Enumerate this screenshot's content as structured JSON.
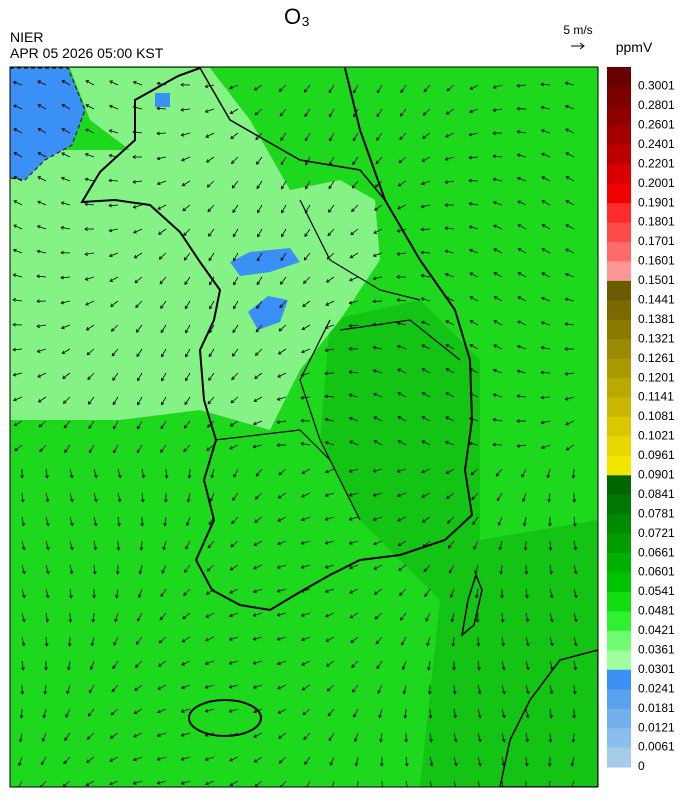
{
  "header": {
    "title": "O₃",
    "agency": "NIER",
    "datetime": "APR 05 2026 05:00 KST",
    "wind_scale": "5 m/s",
    "unit": "ppmV"
  },
  "colorbar": {
    "labels": [
      "0.3001",
      "0.2801",
      "0.2601",
      "0.2401",
      "0.2201",
      "0.2001",
      "0.1901",
      "0.1801",
      "0.1701",
      "0.1601",
      "0.1501",
      "0.1441",
      "0.1381",
      "0.1321",
      "0.1261",
      "0.1201",
      "0.1141",
      "0.1081",
      "0.1021",
      "0.0961",
      "0.0901",
      "0.0841",
      "0.0781",
      "0.0721",
      "0.0661",
      "0.0601",
      "0.0541",
      "0.0481",
      "0.0421",
      "0.0361",
      "0.0301",
      "0.0241",
      "0.0181",
      "0.0121",
      "0.0061",
      "0"
    ],
    "colors": [
      "#6a0000",
      "#7c0000",
      "#8e0000",
      "#a40000",
      "#bc0000",
      "#d80000",
      "#f00000",
      "#ff2a2a",
      "#ff4a4a",
      "#ff6a6a",
      "#ff9696",
      "#6a5a00",
      "#7a6a00",
      "#8a7a00",
      "#9a8a00",
      "#aa9a00",
      "#baaa00",
      "#cab800",
      "#dac800",
      "#e8d800",
      "#f2e600",
      "#006600",
      "#007800",
      "#008a00",
      "#009c00",
      "#00b000",
      "#00c400",
      "#10dc10",
      "#30f030",
      "#70fc70",
      "#a0ffa0",
      "#3a90f4",
      "#5aa2f0",
      "#72b0ee",
      "#8abeec",
      "#a4cce8"
    ]
  }
}
